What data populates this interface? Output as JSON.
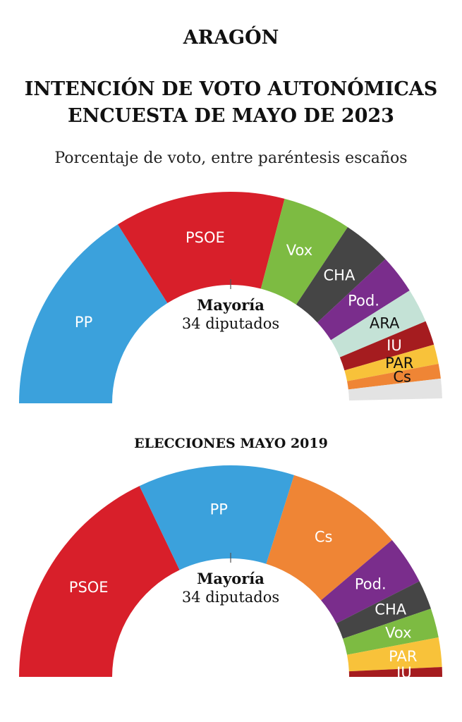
{
  "header": {
    "region": "ARAGÓN",
    "title_line1": "INTENCIÓN DE VOTO AUTONÓMICAS",
    "title_line2": "ENCUESTA DE MAYO DE 2023",
    "subtitle": "Porcentaje de voto, entre paréntesis escaños"
  },
  "section2_title": "ELECCIONES MAYO 2019",
  "colors": {
    "PP": "#3ba1dc",
    "PSOE": "#d81f2a",
    "Vox": "#7dbb42",
    "CHA": "#454545",
    "Pod.": "#7a2d8c",
    "ARA": "#c4e2d6",
    "IU": "#a51c1f",
    "PAR": "#f8c23a",
    "Cs": "#ef8535",
    "remainder": "#e3e3e3"
  },
  "chart_data": [
    {
      "type": "pie",
      "subtype": "parliament-hemicycle",
      "title": "INTENCIÓN DE VOTO AUTONÓMICAS ENCUESTA DE MAYO DE 2023",
      "majority_title": "Mayoría",
      "majority_label": "34 diputados",
      "total_seats": 67,
      "slices": [
        {
          "party": "PP",
          "seats": 21.5,
          "label": "PP",
          "text_color": "#ffffff"
        },
        {
          "party": "PSOE",
          "seats": 17.5,
          "label": "PSOE",
          "text_color": "#ffffff"
        },
        {
          "party": "Vox",
          "seats": 7,
          "label": "Vox",
          "text_color": "#ffffff"
        },
        {
          "party": "CHA",
          "seats": 5,
          "label": "CHA",
          "text_color": "#ffffff"
        },
        {
          "party": "Pod.",
          "seats": 4,
          "label": "Pod.",
          "text_color": "#ffffff"
        },
        {
          "party": "ARA",
          "seats": 3.5,
          "label": "ARA",
          "text_color": "#111111"
        },
        {
          "party": "IU",
          "seats": 2.5,
          "label": "IU",
          "text_color": "#ffffff"
        },
        {
          "party": "PAR",
          "seats": 2,
          "label": "PAR",
          "text_color": "#111111"
        },
        {
          "party": "Cs",
          "seats": 1.5,
          "label": "Cs",
          "text_color": "#111111"
        },
        {
          "party": "remainder",
          "seats": 2,
          "label": "",
          "text_color": "#111111"
        }
      ]
    },
    {
      "type": "pie",
      "subtype": "parliament-hemicycle",
      "title": "ELECCIONES MAYO 2019",
      "majority_title": "Mayoría",
      "majority_label": "34 diputados",
      "total_seats": 67,
      "slices": [
        {
          "party": "PSOE",
          "seats": 24,
          "label": "PSOE",
          "text_color": "#ffffff"
        },
        {
          "party": "PP",
          "seats": 16,
          "label": "PP",
          "text_color": "#ffffff"
        },
        {
          "party": "Cs",
          "seats": 12,
          "label": "Cs",
          "text_color": "#ffffff"
        },
        {
          "party": "Pod.",
          "seats": 5,
          "label": "Pod.",
          "text_color": "#ffffff"
        },
        {
          "party": "CHA",
          "seats": 3,
          "label": "CHA",
          "text_color": "#ffffff"
        },
        {
          "party": "Vox",
          "seats": 3,
          "label": "Vox",
          "text_color": "#ffffff"
        },
        {
          "party": "PAR",
          "seats": 3,
          "label": "PAR",
          "text_color": "#ffffff"
        },
        {
          "party": "IU",
          "seats": 1,
          "label": "IU",
          "text_color": "#ffffff"
        }
      ]
    }
  ]
}
